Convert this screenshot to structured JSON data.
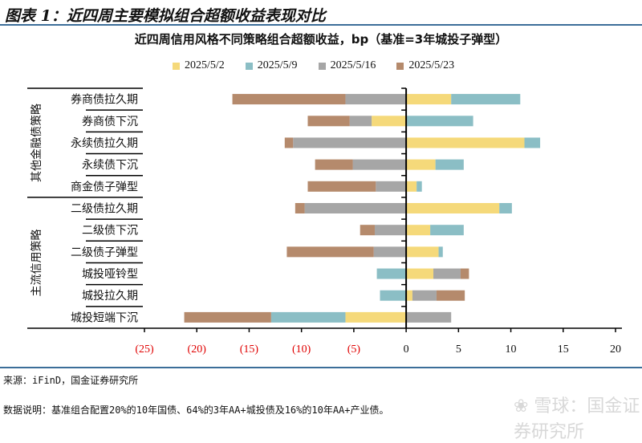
{
  "figure_title": "图表 1：近四周主要模拟组合超额收益表现对比",
  "source": "来源：iFinD，国金证券研究所",
  "note": "数据说明：基准组合配置20%的10年国债、64%的3年AA+城投债及16%的10年AA+产业债。",
  "watermark": "雪球：国金证券研究所",
  "chart_data": {
    "type": "bar",
    "orientation": "horizontal",
    "stacked": true,
    "title": "近四周信用风格不同策略组合超额收益，bp（基准=3年城投子弹型）",
    "xlim": [
      -25,
      20
    ],
    "xticks": [
      -25,
      -20,
      -15,
      -10,
      -5,
      0,
      5,
      10,
      15,
      20
    ],
    "xtick_labels": [
      "(25)",
      "(20)",
      "(15)",
      "(10)",
      "(5)",
      "0",
      "5",
      "10",
      "15",
      "20"
    ],
    "negative_tick_color": "#e00000",
    "legend_position": "top",
    "groups": [
      {
        "label": "其他金融债策略",
        "categories": [
          "券商债拉久期",
          "券商债下沉",
          "永续债拉久期",
          "永续债下沉",
          "商金债子弹型"
        ]
      },
      {
        "label": "主流信用策略",
        "categories": [
          "二级债拉久期",
          "二级债下沉",
          "二级债子弹型",
          "城投哑铃型",
          "城投拉久期",
          "城投短端下沉"
        ]
      }
    ],
    "categories": [
      "券商债拉久期",
      "券商债下沉",
      "永续债拉久期",
      "永续债下沉",
      "商金债子弹型",
      "二级债拉久期",
      "二级债下沉",
      "二级债子弹型",
      "城投哑铃型",
      "城投拉久期",
      "城投短端下沉"
    ],
    "series": [
      {
        "name": "2025/5/2",
        "color": "#f5d97a",
        "values": [
          4.3,
          -3.3,
          11.3,
          2.8,
          1.0,
          8.9,
          2.3,
          3.1,
          2.6,
          0.6,
          -5.8
        ]
      },
      {
        "name": "2025/5/9",
        "color": "#8bbec5",
        "values": [
          6.6,
          6.4,
          1.5,
          2.7,
          0.5,
          1.2,
          3.2,
          0.4,
          -2.8,
          -2.5,
          -7.1
        ]
      },
      {
        "name": "2025/5/16",
        "color": "#a6a6a6",
        "values": [
          -5.8,
          -2.1,
          -10.8,
          -5.1,
          -2.9,
          -9.7,
          -3.0,
          -3.1,
          2.6,
          2.3,
          4.3
        ]
      },
      {
        "name": "2025/5/23",
        "color": "#b58a6c",
        "values": [
          -10.8,
          -4.0,
          -0.8,
          -3.6,
          -6.5,
          -0.9,
          -1.4,
          -8.3,
          0.8,
          2.7,
          -8.3
        ]
      }
    ]
  }
}
